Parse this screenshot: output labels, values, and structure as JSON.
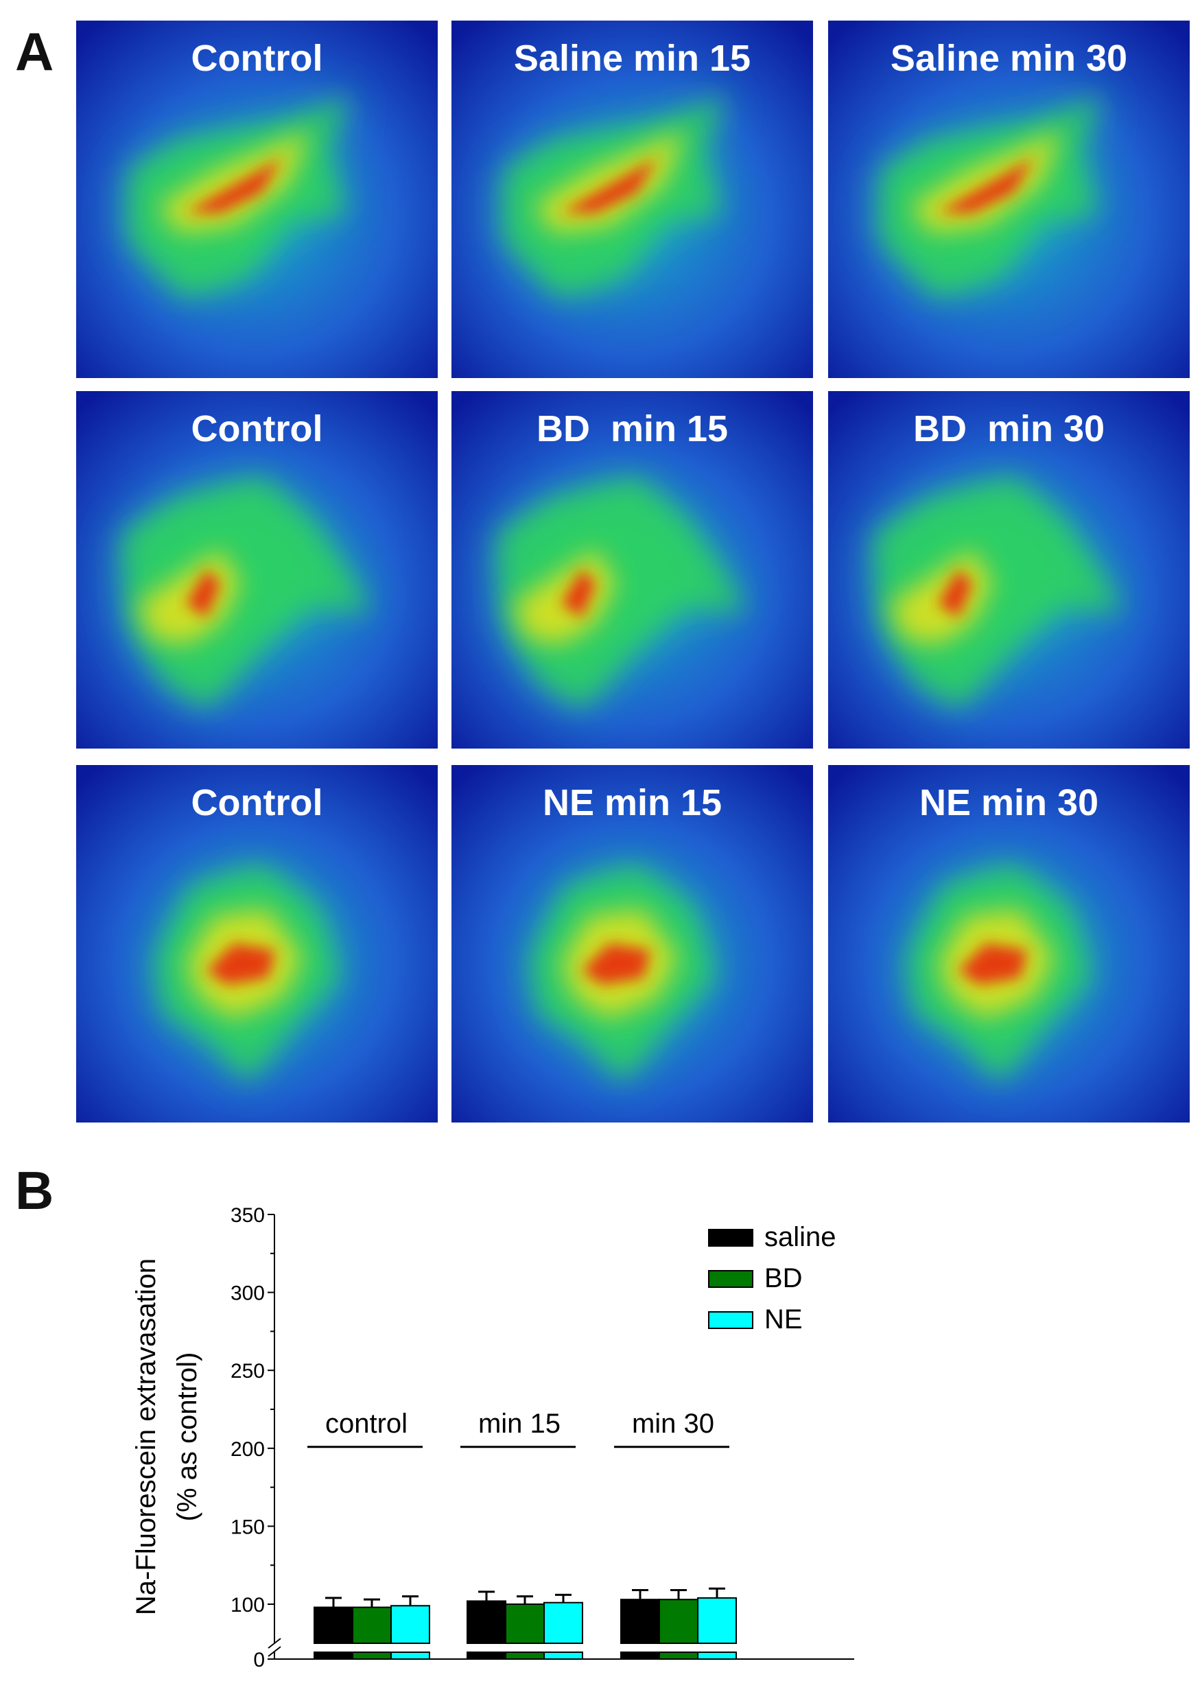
{
  "panel_a": {
    "letter": "A",
    "rows": [
      {
        "name": "saline",
        "labels": [
          "Control",
          "Saline min 15",
          "Saline min 30"
        ]
      },
      {
        "name": "bd",
        "labels": [
          "Control",
          "BD  min 15",
          "BD  min 30"
        ]
      },
      {
        "name": "ne",
        "labels": [
          "Control",
          "NE min 15",
          "NE min 30"
        ]
      }
    ]
  },
  "panel_b": {
    "letter": "B"
  },
  "colors": {
    "saline": "#000000",
    "BD": "#007a00",
    "NE": "#00ffff",
    "heatmap_low": "#0a1a9c",
    "heatmap_mid": "#2fd35a",
    "heatmap_high": "#e82a10"
  },
  "chart_data": {
    "type": "bar",
    "title": "",
    "xlabel": "",
    "ylabel": "Na-Fluorescein extravasation",
    "ylabel2": "(% as control)",
    "ylim": [
      0,
      350
    ],
    "y_break": true,
    "yticks": [
      0,
      100,
      150,
      200,
      250,
      300,
      350
    ],
    "categories": [
      "control",
      "min 15",
      "min 30"
    ],
    "series": [
      {
        "name": "saline",
        "values": [
          98,
          102,
          103
        ],
        "errors": [
          6,
          6,
          6
        ]
      },
      {
        "name": "BD",
        "values": [
          98,
          100,
          103
        ],
        "errors": [
          5,
          5,
          6
        ]
      },
      {
        "name": "NE",
        "values": [
          99,
          101,
          104
        ],
        "errors": [
          6,
          5,
          6
        ]
      }
    ],
    "legend": [
      "saline",
      "BD",
      "NE"
    ],
    "legend_position": "top-right"
  }
}
